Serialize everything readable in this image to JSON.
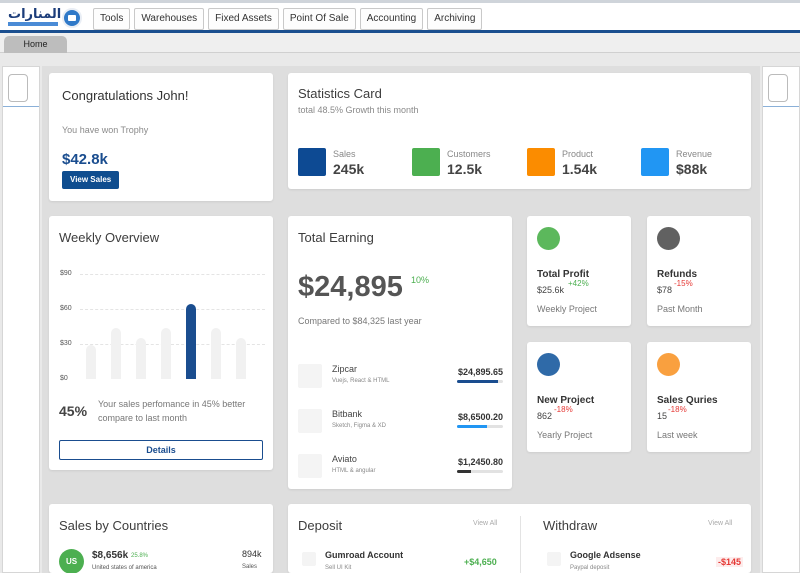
{
  "app": {
    "logo_text": "المنارات",
    "nav_tabs": [
      "Tools",
      "Warehouses",
      "Fixed Assets",
      "Point Of Sale",
      "Accounting",
      "Archiving"
    ],
    "home_tab": "Home"
  },
  "congrats": {
    "title": "Congratulations John!",
    "subtitle": "You have won Trophy",
    "amount": "$42.8k",
    "button": "View Sales"
  },
  "statistics": {
    "title": "Statistics Card",
    "subtitle": "total 48.5% Growth this month",
    "items": [
      {
        "label": "Sales",
        "value": "245k",
        "color": "#0d4a93"
      },
      {
        "label": "Customers",
        "value": "12.5k",
        "color": "#4caf50"
      },
      {
        "label": "Product",
        "value": "1.54k",
        "color": "#fb8c00"
      },
      {
        "label": "Revenue",
        "value": "$88k",
        "color": "#2196f3"
      }
    ]
  },
  "weekly": {
    "title": "Weekly Overview",
    "y_labels": [
      "$90",
      "$60",
      "$30",
      "$0"
    ],
    "bar_levels": [
      0.45,
      0.68,
      0.55,
      0.68,
      1.0,
      0.68,
      0.55
    ],
    "highlight_index": 4,
    "percent": "45%",
    "description": "Your sales perfomance in 45% better compare to last month",
    "button": "Details"
  },
  "earning": {
    "title": "Total Earning",
    "amount": "$24,895",
    "growth": "10%",
    "compare": "Compared to $84,325 last year",
    "rows": [
      {
        "name": "Zipcar",
        "desc": "Vuejs, React & HTML",
        "amount": "$24,895.65",
        "progress": 0.9,
        "color": "#1a4d8f"
      },
      {
        "name": "Bitbank",
        "desc": "Sketch, Figma & XD",
        "amount": "$8,6500.20",
        "progress": 0.65,
        "color": "#2196f3"
      },
      {
        "name": "Aviato",
        "desc": "HTML & angular",
        "amount": "$1,2450.80",
        "progress": 0.3,
        "color": "#333333"
      }
    ]
  },
  "kpis": {
    "profit": {
      "name": "Total Profit",
      "value": "$25.6k",
      "change": "+42%",
      "change_color": "#4caf50",
      "period": "Weekly Project",
      "dot": "#5cb85c"
    },
    "refunds": {
      "name": "Refunds",
      "value": "$78",
      "change": "-15%",
      "change_color": "#e53935",
      "period": "Past Month",
      "dot": "#616161"
    },
    "project": {
      "name": "New Project",
      "value": "862",
      "change": "-18%",
      "change_color": "#e53935",
      "period": "Yearly Project",
      "dot": "#2f6aa8"
    },
    "queries": {
      "name": "Sales Quries",
      "value": "15",
      "change": "-18%",
      "change_color": "#e53935",
      "period": "Last week",
      "dot": "#f9a03f"
    }
  },
  "countries": {
    "title": "Sales by Countries",
    "badge": "US",
    "amount": "$8,656k",
    "percent": "25.8%",
    "country": "United states of america",
    "sales_value": "894k",
    "sales_label": "Sales"
  },
  "deposit": {
    "title": "Deposit",
    "view_all": "View All",
    "tx_name": "Gumroad Account",
    "tx_sub": "Sell UI Kit",
    "tx_amount": "+$4,650"
  },
  "withdraw": {
    "title": "Withdraw",
    "view_all": "View All",
    "tx_name": "Google Adsense",
    "tx_sub": "Paypal deposit",
    "tx_amount": "-$145"
  }
}
